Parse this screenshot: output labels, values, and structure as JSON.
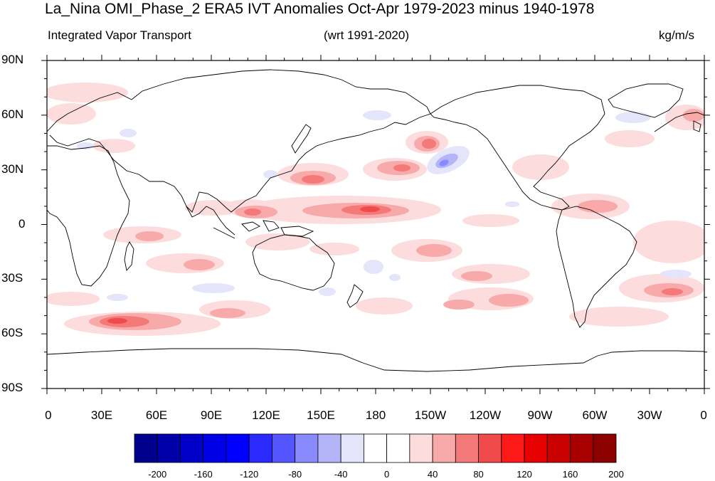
{
  "title": "La_Nina OMI_Phase_2 ERA5 IVT Anomalies Oct-Apr 1979-2023 minus 1940-1978",
  "subtitle_left": "Integrated Vapor Transport",
  "subtitle_center": "(wrt 1991-2020)",
  "subtitle_right": "kg/m/s",
  "x_ticks": [
    "0",
    "30E",
    "60E",
    "90E",
    "120E",
    "150E",
    "180",
    "150W",
    "120W",
    "90W",
    "60W",
    "30W",
    "0"
  ],
  "y_ticks": [
    "90N",
    "60N",
    "30N",
    "0",
    "30S",
    "60S",
    "90S"
  ],
  "colorbar": {
    "levels": [
      "-200",
      "-160",
      "-120",
      "-80",
      "-40",
      "0",
      "40",
      "80",
      "120",
      "160",
      "200"
    ],
    "colors": [
      "#00008c",
      "#0000a8",
      "#0000c8",
      "#0000e6",
      "#0000ff",
      "#2a2aff",
      "#5555ff",
      "#8a8aff",
      "#b4b4f8",
      "#e4e4fa",
      "#ffffff",
      "#ffffff",
      "#fcdcdc",
      "#f8aaaa",
      "#f47a7a",
      "#f04a4a",
      "#ff1a1a",
      "#e60000",
      "#c80000",
      "#a80000",
      "#8c0000"
    ]
  }
}
